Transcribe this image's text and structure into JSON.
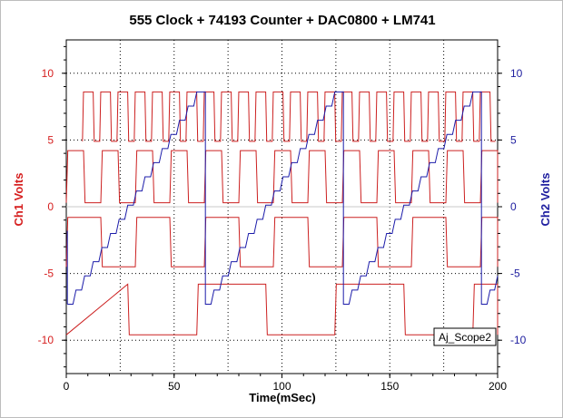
{
  "chart_data": {
    "type": "line",
    "title": "555 Clock + 74193 Counter + DAC0800 + LM741",
    "xlabel": "Time(mSec)",
    "ylabel_left": "Ch1 Volts",
    "ylabel_right": "Ch2 Volts",
    "xlim": [
      0,
      200
    ],
    "ylim": [
      -12.5,
      12.5
    ],
    "x_ticks": [
      0,
      50,
      100,
      150,
      200
    ],
    "x_tick_labels": [
      "0",
      "50",
      "100",
      "150",
      "200"
    ],
    "y_ticks": [
      -10,
      -5,
      0,
      5,
      10
    ],
    "y_tick_labels": [
      "-10",
      "-5",
      "0",
      "5",
      "10"
    ],
    "x_grid": [
      0,
      25,
      50,
      75,
      100,
      125,
      150,
      175,
      200
    ],
    "y_grid": [
      -10,
      -5,
      0,
      5,
      10
    ],
    "grid": true,
    "annotation": "Aj_Scope2",
    "colors": {
      "ch1": "#cc2020",
      "ch2": "#1c1caa",
      "ch1_axis": "#d62020",
      "ch2_axis": "#2020a0"
    },
    "series": [
      {
        "axis": "left",
        "color": "#cc2020",
        "period_ms": 8,
        "duty": 0.62,
        "high": 8.6,
        "low": 4.9,
        "start_ms": 7.5,
        "end_ms": 199
      },
      {
        "axis": "left",
        "color": "#cc2020",
        "period_ms": 16,
        "duty": 0.5,
        "high": 4.2,
        "low": 0.3,
        "start_ms": 0,
        "end_ms": 200
      },
      {
        "axis": "left",
        "color": "#cc2020",
        "period_ms": 32,
        "duty": 0.5,
        "high": -0.8,
        "low": -4.5,
        "start_ms": 0,
        "end_ms": 200
      },
      {
        "axis": "left",
        "color": "#cc2020",
        "period_ms": 64,
        "duty": 0.5,
        "high": -5.8,
        "low": -9.6,
        "start_ms": -3.5,
        "end_ms": 200
      },
      {
        "axis": "right",
        "color": "#1c1caa",
        "type": "staircase",
        "period_ms": 64,
        "steps": 16,
        "start_ms": 0.5,
        "min": -7.3,
        "max": 8.6,
        "end_ms": 200
      }
    ]
  }
}
